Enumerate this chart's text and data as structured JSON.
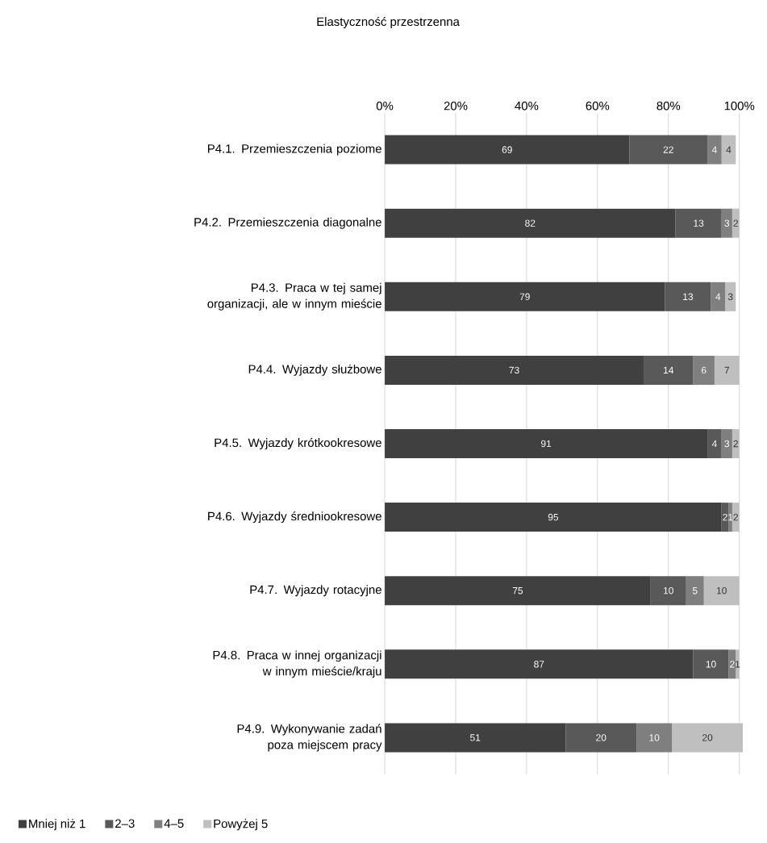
{
  "chart_data": {
    "type": "bar",
    "orientation": "horizontal",
    "stacked": true,
    "title": "Elastyczność przestrzenna",
    "categories": [
      "P4.1. Przemieszczenia poziome",
      "P4.2. Przemieszczenia diagonalne",
      "P4.3. Praca w tej samej organizacji, ale w innym mieście",
      "P4.4. Wyjazdy służbowe",
      "P4.5. Wyjazdy krótkookresowe",
      "P4.6. Wyjazdy średniookresowe",
      "P4.7. Wyjazdy rotacyjne",
      "P4.8. Praca w innej organizacji w innym mieście/kraju",
      "P4.9. Wykonywanie zadań poza miejscem pracy"
    ],
    "series": [
      {
        "name": "Mniej niż 1",
        "color": "#404040",
        "values": [
          69,
          82,
          79,
          73,
          91,
          95,
          75,
          87,
          51
        ]
      },
      {
        "name": "2–3",
        "color": "#595959",
        "values": [
          22,
          13,
          13,
          14,
          4,
          2,
          10,
          10,
          20
        ]
      },
      {
        "name": "4–5",
        "color": "#7f7f7f",
        "values": [
          4,
          3,
          4,
          6,
          3,
          1,
          5,
          2,
          10
        ]
      },
      {
        "name": "Powyżej 5",
        "color": "#bfbfbf",
        "values": [
          4,
          2,
          3,
          7,
          2,
          2,
          10,
          1,
          20
        ]
      }
    ],
    "xlim": [
      0,
      101
    ],
    "xticks": [
      {
        "value": 0,
        "label": "0%"
      },
      {
        "value": 20,
        "label": "20%"
      },
      {
        "value": 40,
        "label": "40%"
      },
      {
        "value": 60,
        "label": "60%"
      },
      {
        "value": 80,
        "label": "80%"
      },
      {
        "value": 100,
        "label": "100%"
      }
    ],
    "grid": "x",
    "legend": "bottom",
    "data_labels": true
  }
}
